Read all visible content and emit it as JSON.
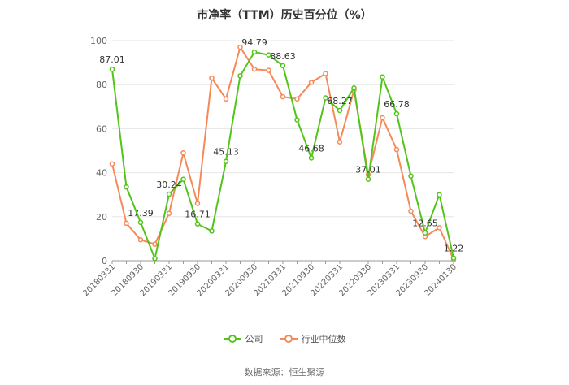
{
  "chart_data": {
    "type": "line",
    "title": "市净率（TTM）历史百分位（%）",
    "categories": [
      "20180331",
      "",
      "20180930",
      "",
      "20190331",
      "",
      "20190930",
      "",
      "20200331",
      "",
      "20200930",
      "",
      "20210331",
      "",
      "20210930",
      "",
      "20220331",
      "",
      "20220930",
      "",
      "20230331",
      "",
      "20230930",
      "",
      "20240130"
    ],
    "ylim": [
      0,
      100
    ],
    "yticks": [
      0,
      20,
      40,
      60,
      80,
      100
    ],
    "grid": true,
    "legend_position": "bottom",
    "series": [
      {
        "name": "公司",
        "color": "#52c41a",
        "values": [
          87.01,
          33.5,
          17.39,
          1.0,
          30.24,
          37.0,
          16.71,
          13.5,
          45.13,
          84.0,
          94.79,
          93.5,
          88.63,
          64.0,
          46.68,
          74.0,
          68.27,
          78.5,
          37.01,
          83.5,
          66.78,
          38.5,
          12.65,
          30.0,
          1.22
        ],
        "labels": {
          "0": "87.01",
          "2": "17.39",
          "4": "30.24",
          "6": "16.71",
          "8": "45.13",
          "10": "94.79",
          "12": "88.63",
          "14": "46.68",
          "16": "68.27",
          "18": "37.01",
          "20": "66.78",
          "22": "12.65",
          "24": "1.22"
        }
      },
      {
        "name": "行业中位数",
        "color": "#f5895a",
        "values": [
          44.0,
          17.0,
          9.5,
          7.5,
          21.5,
          49.0,
          26.0,
          83.0,
          73.5,
          97.0,
          87.0,
          86.5,
          74.5,
          73.5,
          81.0,
          85.0,
          54.0,
          77.5,
          39.0,
          65.0,
          50.5,
          22.5,
          11.0,
          15.0,
          0.5
        ]
      }
    ]
  },
  "source_text": "数据来源：恒生聚源"
}
